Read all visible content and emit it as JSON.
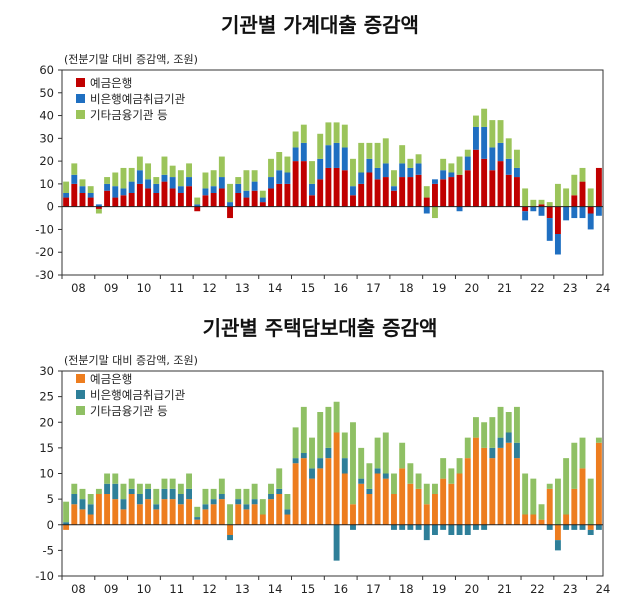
{
  "colors": {
    "c1_deposit": "#c00000",
    "c1_nonbank": "#1f6fc1",
    "c1_other": "#9bc45a",
    "c2_deposit": "#ed7d1f",
    "c2_nonbank": "#2e7f99",
    "c2_other": "#8fc064"
  },
  "chart_data": [
    {
      "type": "bar",
      "stacked": true,
      "title": "기관별 가계대출 증감액",
      "unit_note": "(전분기말 대비 증감액, 조원)",
      "ylim": [
        -30,
        60
      ],
      "yticks": [
        -30,
        -20,
        -10,
        0,
        10,
        20,
        30,
        40,
        50,
        60
      ],
      "x_tick_labels": [
        "08",
        "09",
        "10",
        "11",
        "12",
        "13",
        "14",
        "15",
        "16",
        "17",
        "18",
        "19",
        "20",
        "21",
        "22",
        "23",
        "24"
      ],
      "legend": [
        "예금은행",
        "비은행예금취급기관",
        "기타금융기관 등"
      ],
      "categories": [
        "08Q1",
        "08Q2",
        "08Q3",
        "08Q4",
        "09Q1",
        "09Q2",
        "09Q3",
        "09Q4",
        "10Q1",
        "10Q2",
        "10Q3",
        "10Q4",
        "11Q1",
        "11Q2",
        "11Q3",
        "11Q4",
        "12Q1",
        "12Q2",
        "12Q3",
        "12Q4",
        "13Q1",
        "13Q2",
        "13Q3",
        "13Q4",
        "14Q1",
        "14Q2",
        "14Q3",
        "14Q4",
        "15Q1",
        "15Q2",
        "15Q3",
        "15Q4",
        "16Q1",
        "16Q2",
        "16Q3",
        "16Q4",
        "17Q1",
        "17Q2",
        "17Q3",
        "17Q4",
        "18Q1",
        "18Q2",
        "18Q3",
        "18Q4",
        "19Q1",
        "19Q2",
        "19Q3",
        "19Q4",
        "20Q1",
        "20Q2",
        "20Q3",
        "20Q4",
        "21Q1",
        "21Q2",
        "21Q3",
        "21Q4",
        "22Q1",
        "22Q2",
        "22Q3",
        "22Q4",
        "23Q1",
        "23Q2",
        "23Q3",
        "23Q4",
        "24Q1",
        "24Q2"
      ],
      "series": [
        {
          "name": "예금은행",
          "values": [
            4,
            10,
            6,
            4,
            -1,
            7,
            4,
            5,
            6,
            10,
            8,
            6,
            11,
            8,
            6,
            9,
            -2,
            5,
            6,
            8,
            -5,
            6,
            4,
            7,
            2,
            8,
            10,
            10,
            20,
            20,
            5,
            12,
            17,
            17,
            16,
            5,
            10,
            15,
            12,
            13,
            7,
            13,
            13,
            14,
            4,
            10,
            12,
            13,
            14,
            16,
            25,
            21,
            16,
            20,
            14,
            13,
            -2,
            0,
            1,
            -5,
            -12,
            0,
            5,
            11,
            -3,
            17
          ]
        },
        {
          "name": "비은행예금취급기관",
          "values": [
            2,
            4,
            3,
            2,
            1,
            3,
            5,
            3,
            5,
            6,
            4,
            4,
            3,
            5,
            3,
            4,
            1,
            3,
            3,
            5,
            2,
            4,
            3,
            4,
            2,
            5,
            6,
            5,
            6,
            8,
            5,
            9,
            10,
            11,
            10,
            4,
            5,
            6,
            5,
            6,
            2,
            6,
            4,
            5,
            -3,
            2,
            4,
            2,
            -2,
            6,
            10,
            14,
            10,
            8,
            7,
            4,
            -4,
            -2,
            -4,
            -10,
            -9,
            -6,
            -5,
            -5,
            -7,
            -4
          ]
        },
        {
          "name": "기타금융기관 등",
          "values": [
            5,
            5,
            3,
            3,
            -2,
            3,
            6,
            9,
            6,
            6,
            7,
            3,
            8,
            5,
            7,
            6,
            3,
            7,
            7,
            9,
            8,
            3,
            9,
            5,
            3,
            8,
            8,
            7,
            7,
            8,
            10,
            11,
            10,
            9,
            10,
            12,
            13,
            7,
            11,
            11,
            7,
            8,
            4,
            4,
            5,
            -5,
            5,
            4,
            8,
            3,
            5,
            8,
            12,
            10,
            9,
            8,
            8,
            3,
            2,
            2,
            10,
            8,
            9,
            6,
            8,
            0
          ]
        }
      ]
    },
    {
      "type": "bar",
      "stacked": true,
      "title": "기관별 주택담보대출 증감액",
      "unit_note": "(전분기말 대비 증감액, 조원)",
      "ylim": [
        -10,
        30
      ],
      "yticks": [
        -10,
        -5,
        0,
        5,
        10,
        15,
        20,
        25,
        30
      ],
      "x_tick_labels": [
        "08",
        "09",
        "10",
        "11",
        "12",
        "13",
        "14",
        "15",
        "16",
        "17",
        "18",
        "19",
        "20",
        "21",
        "22",
        "23",
        "24"
      ],
      "legend": [
        "예금은행",
        "비은행예금취급기관",
        "기타금융기관 등"
      ],
      "categories": [
        "08Q1",
        "08Q2",
        "08Q3",
        "08Q4",
        "09Q1",
        "09Q2",
        "09Q3",
        "09Q4",
        "10Q1",
        "10Q2",
        "10Q3",
        "10Q4",
        "11Q1",
        "11Q2",
        "11Q3",
        "11Q4",
        "12Q1",
        "12Q2",
        "12Q3",
        "12Q4",
        "13Q1",
        "13Q2",
        "13Q3",
        "13Q4",
        "14Q1",
        "14Q2",
        "14Q3",
        "14Q4",
        "15Q1",
        "15Q2",
        "15Q3",
        "15Q4",
        "16Q1",
        "16Q2",
        "16Q3",
        "16Q4",
        "17Q1",
        "17Q2",
        "17Q3",
        "17Q4",
        "18Q1",
        "18Q2",
        "18Q3",
        "18Q4",
        "19Q1",
        "19Q2",
        "19Q3",
        "19Q4",
        "20Q1",
        "20Q2",
        "20Q3",
        "20Q4",
        "21Q1",
        "21Q2",
        "21Q3",
        "21Q4",
        "22Q1",
        "22Q2",
        "22Q3",
        "22Q4",
        "23Q1",
        "23Q2",
        "23Q3",
        "23Q4",
        "24Q1",
        "24Q2"
      ],
      "series": [
        {
          "name": "예금은행",
          "values": [
            -1,
            4,
            3,
            2,
            6,
            6,
            5,
            3,
            6,
            4,
            5,
            3,
            5,
            5,
            4,
            5,
            1,
            3,
            4,
            5,
            -2,
            4,
            3,
            4,
            2,
            5,
            6,
            2,
            12,
            13,
            9,
            11,
            13,
            18,
            10,
            4,
            8,
            6,
            10,
            9,
            6,
            11,
            8,
            7,
            4,
            6,
            9,
            8,
            10,
            13,
            17,
            15,
            13,
            15,
            16,
            13,
            2,
            2,
            1,
            7,
            -3,
            2,
            7,
            11,
            -1,
            16
          ]
        },
        {
          "name": "비은행예금취급기관",
          "values": [
            0.5,
            2,
            2,
            2,
            0,
            2,
            3,
            2,
            1,
            2,
            2,
            1,
            2,
            2,
            2,
            2,
            0.5,
            1,
            1,
            1,
            -1,
            1,
            1,
            1,
            0,
            1,
            1,
            1,
            1,
            1,
            2,
            2,
            2,
            -7,
            3,
            -1,
            1,
            1,
            1,
            1,
            -1,
            -1,
            -1,
            -1,
            -3,
            -2,
            -1,
            -2,
            -2,
            -2,
            -1,
            -1,
            2,
            2,
            2,
            3,
            0,
            0,
            0,
            -1,
            -2,
            -1,
            -1,
            -1,
            -1,
            -1
          ]
        },
        {
          "name": "기타금융기관 등",
          "values": [
            4,
            2,
            2,
            2,
            1,
            2,
            2,
            3,
            2,
            2,
            1,
            3,
            2,
            2,
            2,
            3,
            2,
            3,
            2,
            3,
            4,
            2,
            3,
            3,
            3,
            2,
            4,
            3,
            6,
            9,
            6,
            9,
            8,
            6,
            5,
            16,
            6,
            5,
            6,
            8,
            4,
            5,
            4,
            3,
            4,
            2,
            4,
            3,
            3,
            4,
            4,
            5,
            6,
            6,
            4,
            7,
            8,
            7,
            3,
            1,
            9,
            11,
            9,
            6,
            9,
            1
          ]
        }
      ]
    }
  ]
}
